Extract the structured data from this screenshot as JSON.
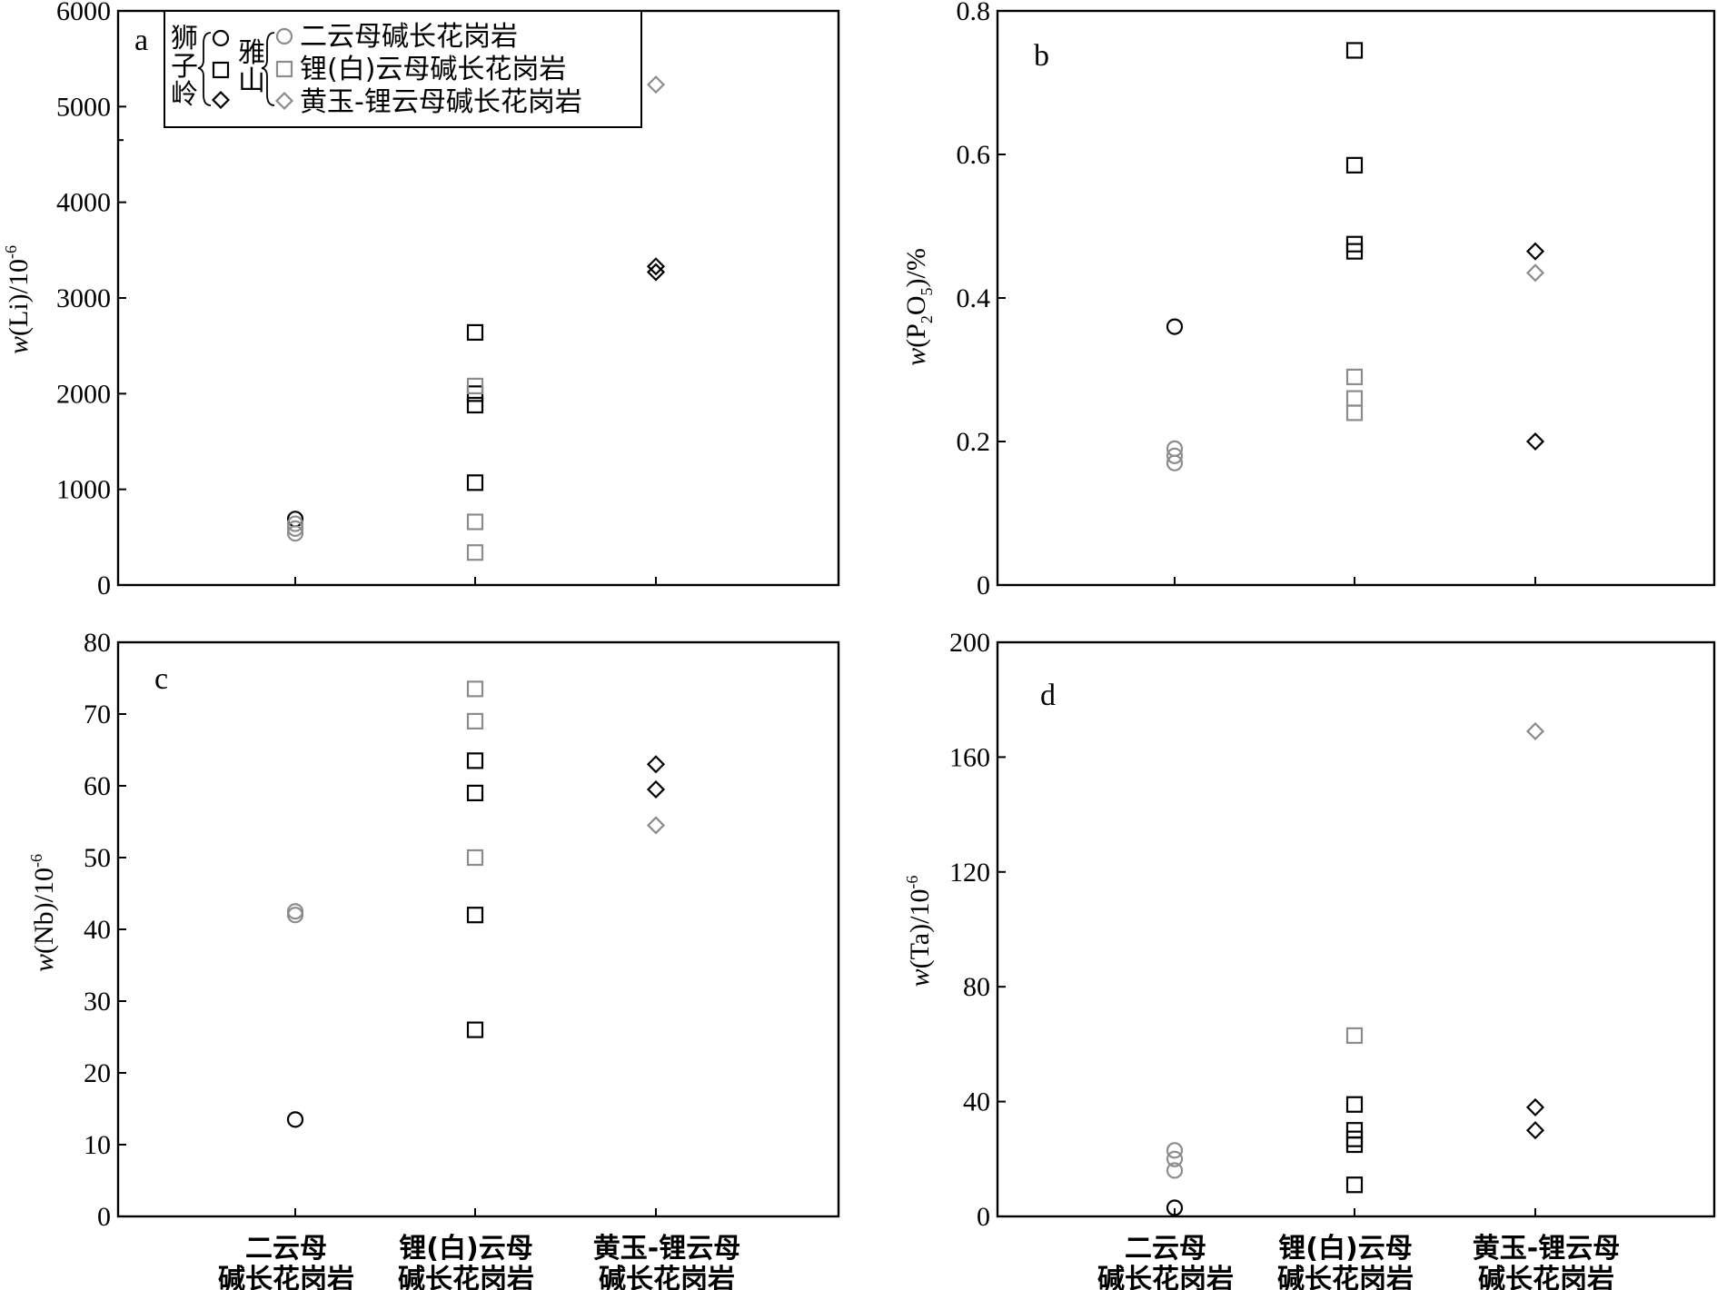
{
  "colors": {
    "black": "#000000",
    "gray": "#8c8c8c"
  },
  "legend": {
    "group_a_label": [
      "狮",
      "子",
      "岭"
    ],
    "group_b_label": [
      "雅",
      "山"
    ],
    "entries": [
      "二云母碱长花岗岩",
      "锂(白)云母碱长花岗岩",
      "黄玉-锂云母碱长花岗岩"
    ]
  },
  "categories": [
    [
      "二云母",
      "碱长花岗岩"
    ],
    [
      "锂(白)云母",
      "碱长花岗岩"
    ],
    [
      "黄玉-锂云母",
      "碱长花岗岩"
    ]
  ],
  "chart_data": [
    {
      "type": "scatter",
      "panel": "a",
      "ylabel_parts": {
        "w": "w",
        "body": "(Li)/10",
        "sup": "-6"
      },
      "ylim": [
        0,
        6000
      ],
      "yticks": [
        0,
        1000,
        2000,
        3000,
        4000,
        5000,
        6000
      ],
      "categories": [
        "二云母碱长花岗岩",
        "锂(白)云母碱长花岗岩",
        "黄玉-锂云母碱长花岗岩"
      ],
      "series": [
        {
          "locality": "狮子岭",
          "color": "black",
          "points": [
            {
              "category": 0,
              "marker": "circle",
              "y": 690
            },
            {
              "category": 1,
              "marker": "square",
              "y": 2640
            },
            {
              "category": 1,
              "marker": "square",
              "y": 2000
            },
            {
              "category": 1,
              "marker": "square",
              "y": 1880
            },
            {
              "category": 1,
              "marker": "square",
              "y": 1070
            },
            {
              "category": 2,
              "marker": "diamond",
              "y": 3330
            },
            {
              "category": 2,
              "marker": "diamond",
              "y": 3270
            }
          ]
        },
        {
          "locality": "雅山",
          "color": "gray",
          "points": [
            {
              "category": 0,
              "marker": "circle",
              "y": 640
            },
            {
              "category": 0,
              "marker": "circle",
              "y": 590
            },
            {
              "category": 0,
              "marker": "circle",
              "y": 540
            },
            {
              "category": 1,
              "marker": "square",
              "y": 2080
            },
            {
              "category": 1,
              "marker": "square",
              "y": 660
            },
            {
              "category": 1,
              "marker": "square",
              "y": 340
            },
            {
              "category": 2,
              "marker": "diamond",
              "y": 5230
            }
          ]
        }
      ]
    },
    {
      "type": "scatter",
      "panel": "b",
      "ylabel_parts": {
        "w": "w",
        "body": "(P",
        "sub1": "2",
        "mid": "O",
        "sub2": "5",
        "tail": ")/%"
      },
      "ylim": [
        0,
        0.8
      ],
      "yticks": [
        0,
        0.2,
        0.4,
        0.6,
        0.8
      ],
      "ytick_labels": [
        "0",
        "0.2",
        "0.4",
        "0.6",
        "0.8"
      ],
      "categories": [
        "二云母碱长花岗岩",
        "锂(白)云母碱长花岗岩",
        "黄玉-锂云母碱长花岗岩"
      ],
      "series": [
        {
          "locality": "狮子岭",
          "color": "black",
          "points": [
            {
              "category": 0,
              "marker": "circle",
              "y": 0.36
            },
            {
              "category": 1,
              "marker": "square",
              "y": 0.745
            },
            {
              "category": 1,
              "marker": "square",
              "y": 0.585
            },
            {
              "category": 1,
              "marker": "square",
              "y": 0.475
            },
            {
              "category": 1,
              "marker": "square",
              "y": 0.465
            },
            {
              "category": 2,
              "marker": "diamond",
              "y": 0.465
            },
            {
              "category": 2,
              "marker": "diamond",
              "y": 0.2
            }
          ]
        },
        {
          "locality": "雅山",
          "color": "gray",
          "points": [
            {
              "category": 0,
              "marker": "circle",
              "y": 0.19
            },
            {
              "category": 0,
              "marker": "circle",
              "y": 0.18
            },
            {
              "category": 0,
              "marker": "circle",
              "y": 0.17
            },
            {
              "category": 1,
              "marker": "square",
              "y": 0.29
            },
            {
              "category": 1,
              "marker": "square",
              "y": 0.26
            },
            {
              "category": 1,
              "marker": "square",
              "y": 0.24
            },
            {
              "category": 2,
              "marker": "diamond",
              "y": 0.435
            }
          ]
        }
      ]
    },
    {
      "type": "scatter",
      "panel": "c",
      "ylabel_parts": {
        "w": "w",
        "body": "(Nb)/10",
        "sup": "-6"
      },
      "ylim": [
        0,
        80
      ],
      "yticks": [
        0,
        10,
        20,
        30,
        40,
        50,
        60,
        70,
        80
      ],
      "categories": [
        "二云母碱长花岗岩",
        "锂(白)云母碱长花岗岩",
        "黄玉-锂云母碱长花岗岩"
      ],
      "series": [
        {
          "locality": "狮子岭",
          "color": "black",
          "points": [
            {
              "category": 0,
              "marker": "circle",
              "y": 13.5
            },
            {
              "category": 1,
              "marker": "square",
              "y": 63.5
            },
            {
              "category": 1,
              "marker": "square",
              "y": 59
            },
            {
              "category": 1,
              "marker": "square",
              "y": 42
            },
            {
              "category": 1,
              "marker": "square",
              "y": 26
            },
            {
              "category": 2,
              "marker": "diamond",
              "y": 63
            },
            {
              "category": 2,
              "marker": "diamond",
              "y": 59.5
            }
          ]
        },
        {
          "locality": "雅山",
          "color": "gray",
          "points": [
            {
              "category": 0,
              "marker": "circle",
              "y": 42.5
            },
            {
              "category": 0,
              "marker": "circle",
              "y": 42
            },
            {
              "category": 1,
              "marker": "square",
              "y": 73.5
            },
            {
              "category": 1,
              "marker": "square",
              "y": 69
            },
            {
              "category": 1,
              "marker": "square",
              "y": 50
            },
            {
              "category": 2,
              "marker": "diamond",
              "y": 54.5
            }
          ]
        }
      ]
    },
    {
      "type": "scatter",
      "panel": "d",
      "ylabel_parts": {
        "w": "w",
        "body": "(Ta)/10",
        "sup": "-6"
      },
      "ylim": [
        0,
        200
      ],
      "yticks": [
        0,
        40,
        80,
        120,
        160,
        200
      ],
      "categories": [
        "二云母碱长花岗岩",
        "锂(白)云母碱长花岗岩",
        "黄玉-锂云母碱长花岗岩"
      ],
      "series": [
        {
          "locality": "狮子岭",
          "color": "black",
          "points": [
            {
              "category": 0,
              "marker": "circle",
              "y": 3
            },
            {
              "category": 1,
              "marker": "square",
              "y": 39
            },
            {
              "category": 1,
              "marker": "square",
              "y": 30
            },
            {
              "category": 1,
              "marker": "square",
              "y": 27
            },
            {
              "category": 1,
              "marker": "square",
              "y": 25
            },
            {
              "category": 1,
              "marker": "square",
              "y": 11
            },
            {
              "category": 2,
              "marker": "diamond",
              "y": 38
            },
            {
              "category": 2,
              "marker": "diamond",
              "y": 30
            }
          ]
        },
        {
          "locality": "雅山",
          "color": "gray",
          "points": [
            {
              "category": 0,
              "marker": "circle",
              "y": 23
            },
            {
              "category": 0,
              "marker": "circle",
              "y": 20
            },
            {
              "category": 0,
              "marker": "circle",
              "y": 16
            },
            {
              "category": 1,
              "marker": "square",
              "y": 63
            },
            {
              "category": 2,
              "marker": "diamond",
              "y": 169
            }
          ]
        }
      ]
    }
  ]
}
